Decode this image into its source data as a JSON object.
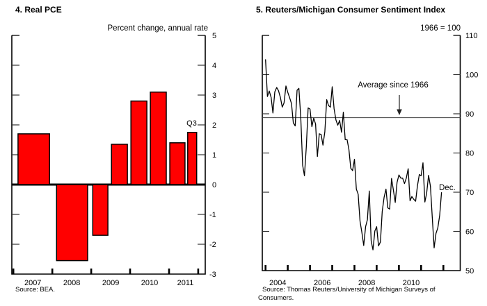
{
  "chart_data": [
    {
      "type": "bar",
      "title": "4. Real PCE",
      "unit_label": "Percent change, annual rate",
      "source": "Source:  BEA.",
      "bar_color": "#ff0000",
      "bar_edge_color": "#000000",
      "y_min": -3,
      "y_max": 5,
      "y_tick_labels": [
        5,
        4,
        3,
        2,
        1,
        0,
        -1,
        -2,
        -3
      ],
      "x_ticks": [
        2007,
        2008,
        2009,
        2010,
        2011,
        2011.75
      ],
      "x_labels": [
        {
          "text": "2007",
          "t": 2007.5
        },
        {
          "text": "2008",
          "t": 2008.5
        },
        {
          "text": "2009",
          "t": 2009.5
        },
        {
          "text": "2010",
          "t": 2010.5
        },
        {
          "text": "2011",
          "t": 2011.42
        }
      ],
      "bars": [
        {
          "period": "2007",
          "value": 1.7,
          "t0": 2007.12,
          "t1": 2007.93
        },
        {
          "period": "2008",
          "value": -2.55,
          "t0": 2008.11,
          "t1": 2008.91
        },
        {
          "period": "2009:H1",
          "value": -1.7,
          "t0": 2009.04,
          "t1": 2009.43
        },
        {
          "period": "2009:H2",
          "value": 1.35,
          "t0": 2009.52,
          "t1": 2009.93
        },
        {
          "period": "2010:H1",
          "value": 2.8,
          "t0": 2010.02,
          "t1": 2010.43
        },
        {
          "period": "2010:H2",
          "value": 3.1,
          "t0": 2010.52,
          "t1": 2010.93
        },
        {
          "period": "2011:H1",
          "value": 1.4,
          "t0": 2011.02,
          "t1": 2011.41
        },
        {
          "period": "2011:Q3",
          "value": 1.75,
          "t0": 2011.48,
          "t1": 2011.71
        }
      ],
      "annotation": {
        "text": "Q3"
      }
    },
    {
      "type": "line",
      "title": "5. Reuters/Michigan Consumer Sentiment Index",
      "unit_label": "1966 = 100",
      "source_lines": [
        "Source:  Thomas Reuters/University of Michigan Surveys of",
        "Consumers."
      ],
      "line_color": "#000000",
      "y_min": 50,
      "y_max": 110,
      "y_tick_labels": [
        110,
        100,
        90,
        80,
        70,
        60,
        50
      ],
      "x_ticks": [
        2004,
        2005,
        2006,
        2007,
        2008,
        2009,
        2010,
        2011,
        2012
      ],
      "x_labels": [
        {
          "text": "2004",
          "t": 2004.55
        },
        {
          "text": "2006",
          "t": 2006.55
        },
        {
          "text": "2008",
          "t": 2008.55
        },
        {
          "text": "2010",
          "t": 2010.55
        }
      ],
      "average_value": 89.0,
      "average_label": "Average since 1966",
      "end_label": "Dec.",
      "series": {
        "name": "Consumer sentiment index",
        "start": "2004-01",
        "frequency": "monthly",
        "values": [
          103.8,
          94.4,
          95.8,
          94.2,
          90.2,
          95.6,
          96.7,
          95.9,
          94.2,
          91.7,
          92.8,
          97.1,
          95.5,
          94.1,
          92.6,
          87.7,
          86.9,
          96.0,
          96.5,
          89.1,
          76.9,
          74.2,
          81.6,
          91.5,
          91.2,
          86.7,
          88.9,
          87.4,
          79.1,
          84.9,
          84.7,
          82.0,
          85.4,
          93.6,
          92.1,
          91.7,
          96.9,
          91.3,
          88.4,
          87.1,
          88.3,
          85.3,
          90.4,
          83.4,
          83.4,
          80.9,
          76.1,
          75.5,
          78.4,
          70.8,
          69.5,
          62.6,
          59.8,
          56.4,
          61.2,
          63.0,
          70.3,
          57.6,
          55.3,
          60.1,
          61.2,
          56.3,
          57.3,
          65.1,
          68.7,
          70.8,
          66.0,
          65.7,
          73.5,
          70.6,
          67.4,
          72.5,
          74.4,
          73.6,
          73.6,
          72.2,
          73.6,
          76.0,
          67.8,
          68.9,
          68.2,
          67.7,
          71.6,
          74.5,
          74.2,
          77.5,
          67.5,
          69.8,
          74.3,
          71.5,
          63.7,
          55.8,
          59.5,
          60.9,
          64.1,
          69.9
        ]
      }
    }
  ]
}
